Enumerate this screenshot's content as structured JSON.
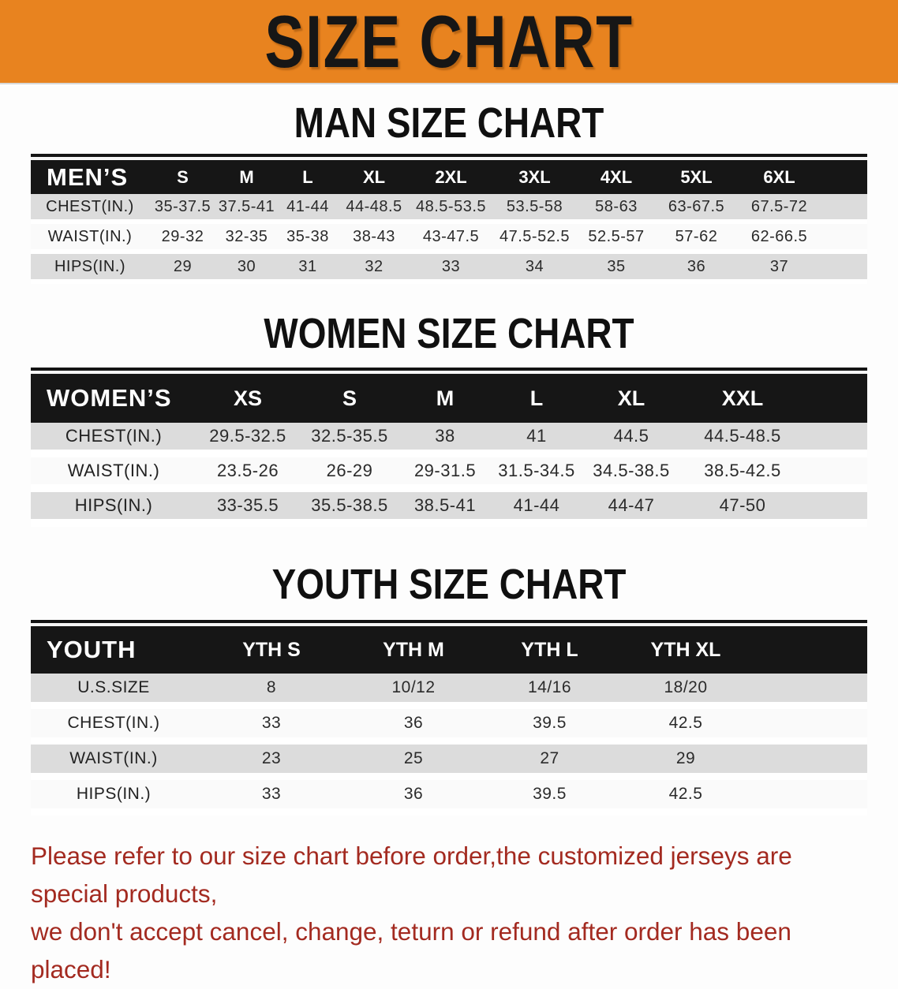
{
  "banner": {
    "title": "SIZE CHART"
  },
  "sections": [
    {
      "heading": "MAN SIZE CHART",
      "table": {
        "header_label": "MEN’S",
        "columns": [
          "S",
          "M",
          "L",
          "XL",
          "2XL",
          "3XL",
          "4XL",
          "5XL",
          "6XL"
        ],
        "rows": [
          {
            "label": "CHEST(IN.)",
            "values": [
              "35-37.5",
              "37.5-41",
              "41-44",
              "44-48.5",
              "48.5-53.5",
              "53.5-58",
              "58-63",
              "63-67.5",
              "67.5-72"
            ]
          },
          {
            "label": "WAIST(IN.)",
            "values": [
              "29-32",
              "32-35",
              "35-38",
              "38-43",
              "43-47.5",
              "47.5-52.5",
              "52.5-57",
              "57-62",
              "62-66.5"
            ]
          },
          {
            "label": "HIPS(IN.)",
            "values": [
              "29",
              "30",
              "31",
              "32",
              "33",
              "34",
              "35",
              "36",
              "37"
            ]
          }
        ]
      }
    },
    {
      "heading": "WOMEN SIZE CHART",
      "table": {
        "header_label": "WOMEN’S",
        "columns": [
          "XS",
          "S",
          "M",
          "L",
          "XL",
          "XXL"
        ],
        "rows": [
          {
            "label": "CHEST(IN.)",
            "values": [
              "29.5-32.5",
              "32.5-35.5",
              "38",
              "41",
              "44.5",
              "44.5-48.5"
            ]
          },
          {
            "label": "WAIST(IN.)",
            "values": [
              "23.5-26",
              "26-29",
              "29-31.5",
              "31.5-34.5",
              "34.5-38.5",
              "38.5-42.5"
            ]
          },
          {
            "label": "HIPS(IN.)",
            "values": [
              "33-35.5",
              "35.5-38.5",
              "38.5-41",
              "41-44",
              "44-47",
              "47-50"
            ]
          }
        ]
      }
    },
    {
      "heading": "YOUTH SIZE CHART",
      "table": {
        "header_label": "YOUTH",
        "columns": [
          "YTH S",
          "YTH M",
          "YTH L",
          "YTH XL"
        ],
        "rows": [
          {
            "label": "U.S.SIZE",
            "values": [
              "8",
              "10/12",
              "14/16",
              "18/20"
            ]
          },
          {
            "label": "CHEST(IN.)",
            "values": [
              "33",
              "36",
              "39.5",
              "42.5"
            ]
          },
          {
            "label": "WAIST(IN.)",
            "values": [
              "23",
              "25",
              "27",
              "29"
            ]
          },
          {
            "label": "HIPS(IN.)",
            "values": [
              "33",
              "36",
              "39.5",
              "42.5"
            ]
          }
        ]
      }
    }
  ],
  "footer": {
    "line1": "Please refer to our size chart before order,the customized jerseys are special products,",
    "line2": "we don't accept cancel, change, teturn or refund after order has been placed!"
  },
  "colors": {
    "banner_bg": "#E8831F",
    "banner_text": "#161616",
    "header_bar": "#161616",
    "header_text": "#FFFFFF",
    "row_gray": "#DCDCDC",
    "row_white": "#FAFAFA",
    "disclaimer_red": "#A32A20"
  }
}
